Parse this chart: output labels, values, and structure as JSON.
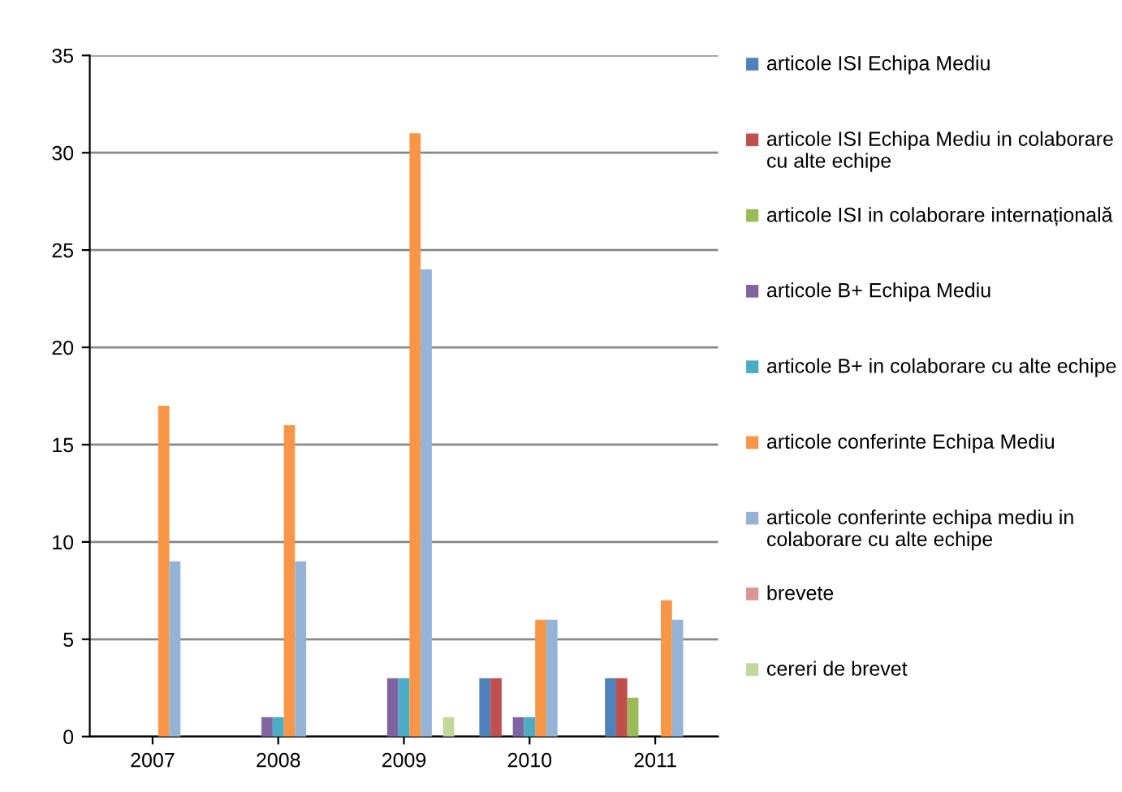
{
  "chart_data": {
    "type": "bar",
    "categories": [
      "2007",
      "2008",
      "2009",
      "2010",
      "2011"
    ],
    "series": [
      {
        "name": "articole ISI Echipa Mediu",
        "color": "#4f81bd",
        "values": [
          0,
          0,
          0,
          3,
          3
        ]
      },
      {
        "name": "articole ISI Echipa Mediu in colaborare cu alte echipe",
        "color": "#c0504d",
        "values": [
          0,
          0,
          0,
          3,
          3
        ]
      },
      {
        "name": "articole ISI in colaborare internațională",
        "color": "#9bbb59",
        "values": [
          0,
          0,
          0,
          0,
          2
        ]
      },
      {
        "name": "articole B+ Echipa Mediu",
        "color": "#8064a2",
        "values": [
          0,
          1,
          3,
          1,
          0
        ]
      },
      {
        "name": "articole B+ in colaborare cu alte echipe",
        "color": "#4bacc6",
        "values": [
          0,
          1,
          3,
          1,
          0
        ]
      },
      {
        "name": "articole conferinte Echipa Mediu",
        "color": "#f79646",
        "values": [
          17,
          16,
          31,
          6,
          7
        ]
      },
      {
        "name": "articole conferinte echipa mediu in colaborare cu alte echipe",
        "color": "#95b3d7",
        "values": [
          9,
          9,
          24,
          6,
          6
        ]
      },
      {
        "name": "brevete",
        "color": "#d99694",
        "values": [
          0,
          0,
          0,
          0,
          0
        ]
      },
      {
        "name": "cereri de brevet",
        "color": "#c3d69b",
        "values": [
          0,
          0,
          1,
          0,
          0
        ]
      }
    ],
    "ylim": [
      0,
      35
    ],
    "yticks": [
      0,
      5,
      10,
      15,
      20,
      25,
      30,
      35
    ],
    "grid": "y",
    "legend": "right"
  }
}
